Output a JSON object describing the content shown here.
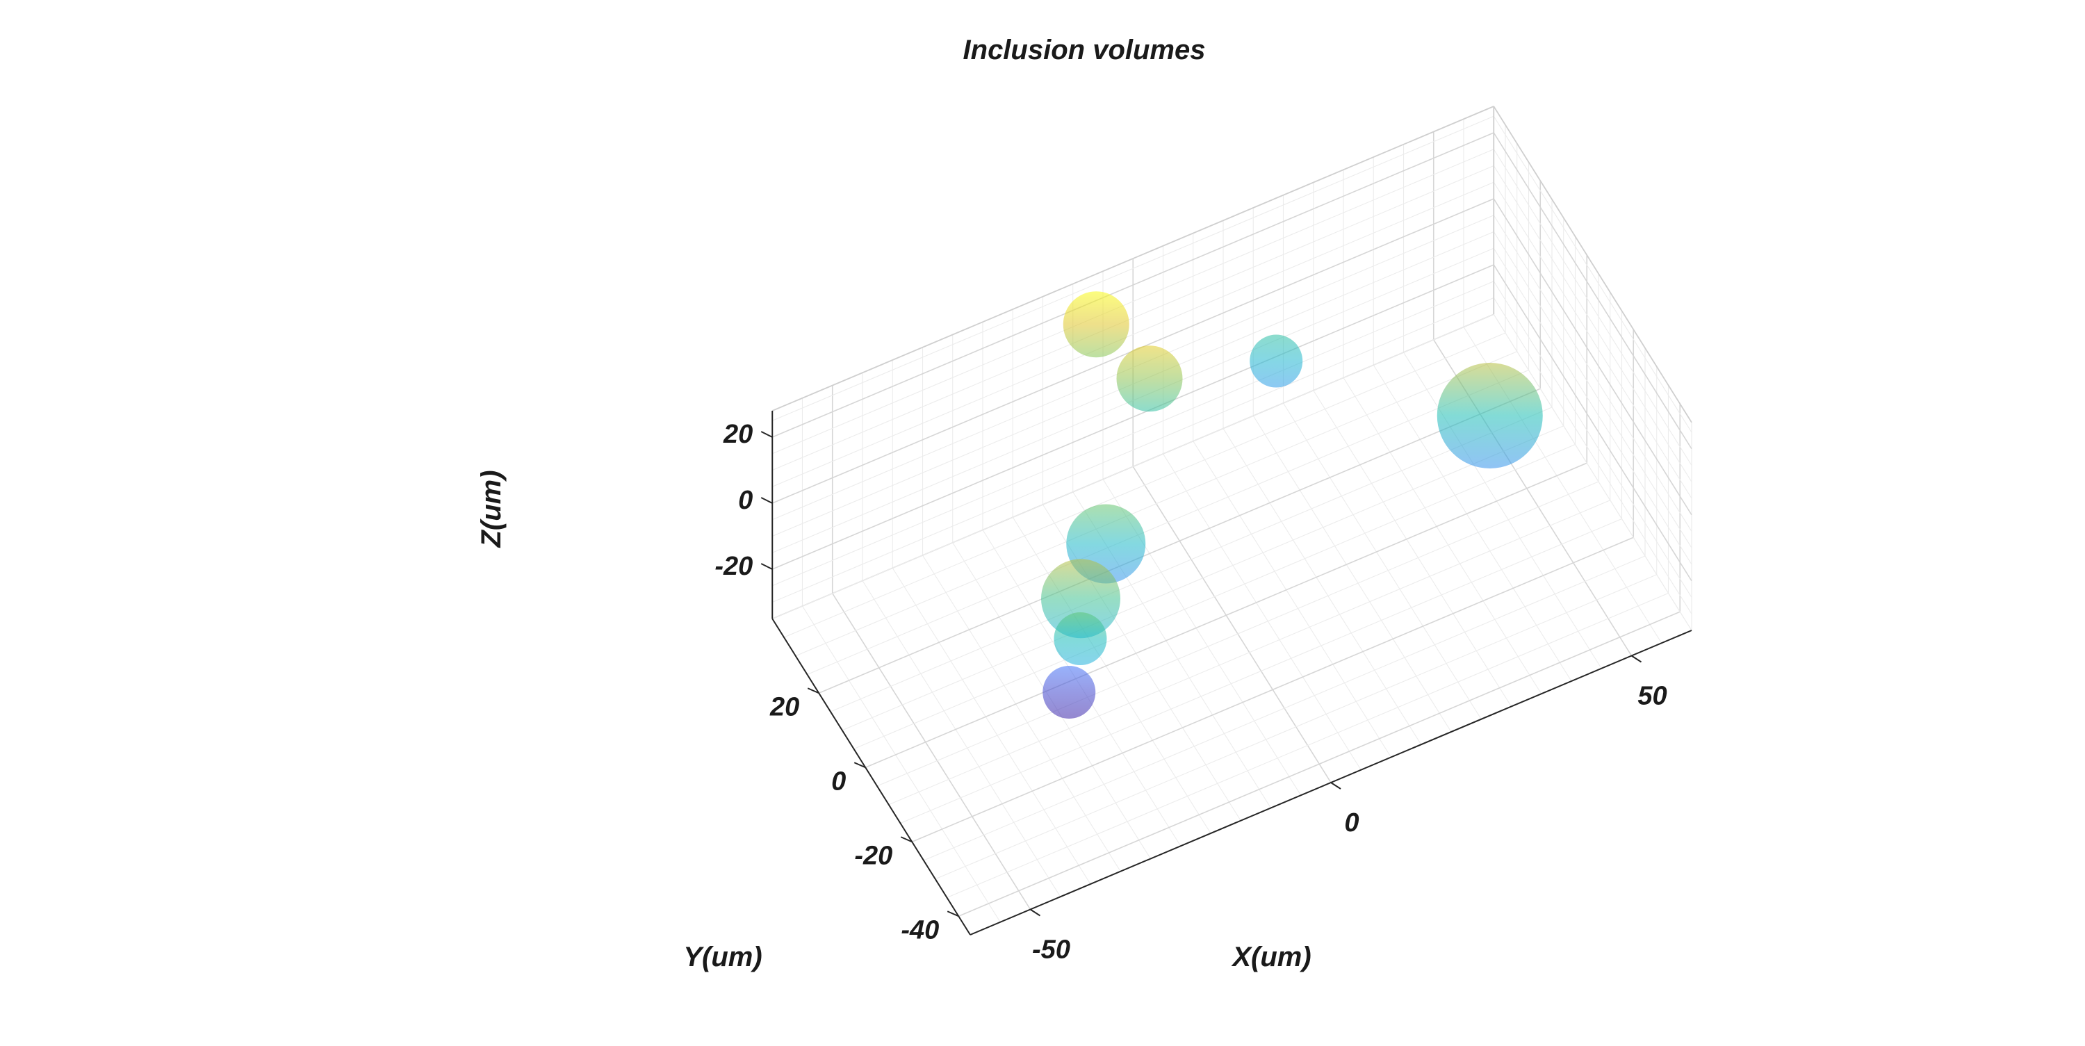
{
  "chart_data": {
    "type": "scatter3d",
    "title": "Inclusion volumes",
    "xlabel": "X(um)",
    "ylabel": "Y(um)",
    "zlabel": "Z(um)",
    "x_ticks": [
      "-50",
      "0",
      "50"
    ],
    "y_ticks": [
      "20",
      "0",
      "-20",
      "-40"
    ],
    "z_ticks": [
      "20",
      "0",
      "-20"
    ],
    "xlim": [
      -60,
      60
    ],
    "ylim": [
      -45,
      40
    ],
    "zlim": [
      -35,
      28
    ],
    "grid": true,
    "colormap": "parula",
    "colormap_range": [
      -30,
      35
    ],
    "marker": "translucent sphere",
    "points": [
      {
        "x": -10,
        "y": 30,
        "z": 27,
        "r": 10
      },
      {
        "x": -5,
        "y": 20,
        "z": 18,
        "r": 10
      },
      {
        "x": 18,
        "y": 25,
        "z": 0,
        "r": 8
      },
      {
        "x": -20,
        "y": 0,
        "z": 2,
        "r": 12
      },
      {
        "x": -30,
        "y": -15,
        "z": 10,
        "r": 12
      },
      {
        "x": -32,
        "y": -20,
        "z": 5,
        "r": 8
      },
      {
        "x": 40,
        "y": -10,
        "z": 6,
        "r": 16
      },
      {
        "x": -30,
        "y": -10,
        "z": -24,
        "r": 8
      }
    ]
  }
}
